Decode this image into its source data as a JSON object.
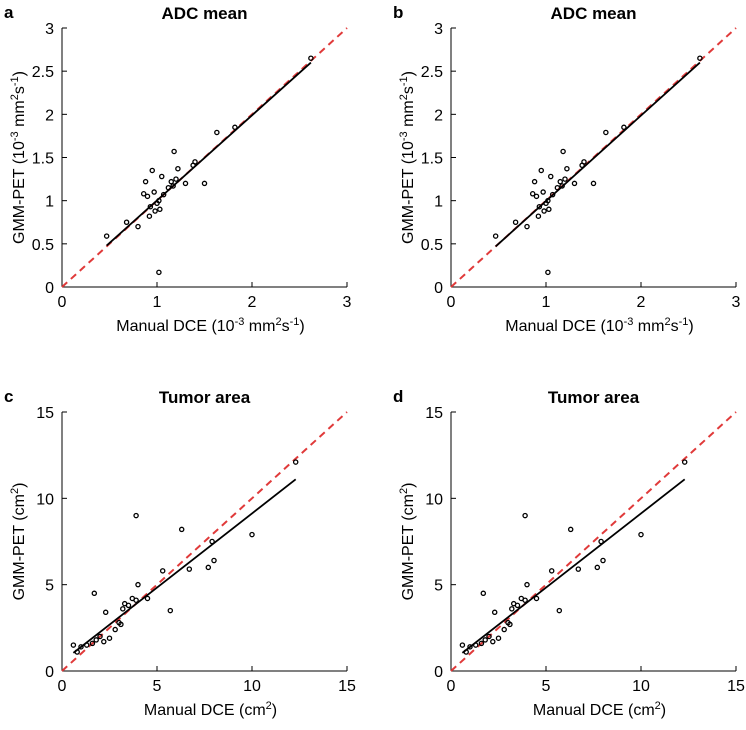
{
  "chart_data": [
    {
      "type": "scatter",
      "panel_label": "a",
      "title": "ADC mean",
      "xlabel_parts": [
        "Manual DCE (10",
        "-3",
        " mm",
        "2",
        "s",
        "-1",
        ")"
      ],
      "ylabel_parts": [
        "GMM-PET (10",
        "-3",
        " mm",
        "2",
        "s",
        "-1",
        ")"
      ],
      "xlim": [
        0,
        3
      ],
      "ylim": [
        0,
        3
      ],
      "xticks": [
        0,
        1,
        2,
        3
      ],
      "yticks": [
        0,
        0.5,
        1,
        1.5,
        2,
        2.5,
        3
      ],
      "ytick_labels": [
        "0",
        "0.5",
        "1",
        "1.5",
        "2",
        "2.5",
        "3"
      ],
      "identity_line_color": "#e03a3a",
      "fit_line_color": "#000000",
      "fit_line": {
        "x": [
          0.47,
          2.62
        ],
        "y": [
          0.48,
          2.6
        ]
      },
      "x": [
        0.47,
        0.68,
        0.8,
        0.86,
        0.88,
        0.9,
        0.92,
        0.93,
        0.95,
        0.97,
        0.98,
        1.0,
        1.02,
        1.03,
        1.05,
        1.07,
        1.12,
        1.15,
        1.17,
        1.18,
        1.2,
        1.22,
        1.3,
        1.38,
        1.4,
        1.5,
        1.63,
        1.82,
        2.62,
        1.02
      ],
      "y": [
        0.59,
        0.75,
        0.7,
        1.08,
        1.22,
        1.05,
        0.82,
        0.93,
        1.35,
        1.1,
        0.88,
        0.97,
        1.0,
        0.9,
        1.28,
        1.07,
        1.15,
        1.22,
        1.17,
        1.57,
        1.25,
        1.37,
        1.2,
        1.41,
        1.45,
        1.2,
        1.79,
        1.85,
        2.65,
        0.17
      ]
    },
    {
      "type": "scatter",
      "panel_label": "b",
      "title": "ADC mean",
      "xlabel_parts": [
        "Manual DCE (10",
        "-3",
        " mm",
        "2",
        "s",
        "-1",
        ")"
      ],
      "ylabel_parts": [
        "GMM-PET (10",
        "-3",
        " mm",
        "2",
        "s",
        "-1",
        ")"
      ],
      "xlim": [
        0,
        3
      ],
      "ylim": [
        0,
        3
      ],
      "xticks": [
        0,
        1,
        2,
        3
      ],
      "yticks": [
        0,
        0.5,
        1,
        1.5,
        2,
        2.5,
        3
      ],
      "ytick_labels": [
        "0",
        "0.5",
        "1",
        "1.5",
        "2",
        "2.5",
        "3"
      ],
      "identity_line_color": "#e03a3a",
      "fit_line_color": "#000000",
      "fit_line": {
        "x": [
          0.47,
          2.62
        ],
        "y": [
          0.47,
          2.6
        ]
      },
      "x": [
        0.47,
        0.68,
        0.8,
        0.86,
        0.88,
        0.9,
        0.92,
        0.93,
        0.95,
        0.97,
        0.98,
        1.0,
        1.02,
        1.03,
        1.05,
        1.07,
        1.12,
        1.15,
        1.17,
        1.18,
        1.2,
        1.22,
        1.3,
        1.38,
        1.4,
        1.5,
        1.63,
        1.82,
        2.62,
        1.02
      ],
      "y": [
        0.59,
        0.75,
        0.7,
        1.08,
        1.22,
        1.05,
        0.82,
        0.93,
        1.35,
        1.1,
        0.88,
        0.97,
        1.0,
        0.9,
        1.28,
        1.07,
        1.15,
        1.22,
        1.17,
        1.57,
        1.25,
        1.37,
        1.2,
        1.41,
        1.45,
        1.2,
        1.79,
        1.85,
        2.65,
        0.17
      ]
    },
    {
      "type": "scatter",
      "panel_label": "c",
      "title": "Tumor area",
      "xlabel_parts": [
        "Manual DCE (cm",
        "2",
        ")"
      ],
      "ylabel_parts": [
        "GMM-PET (cm",
        "2",
        ")"
      ],
      "xlim": [
        0,
        15
      ],
      "ylim": [
        0,
        15
      ],
      "xticks": [
        0,
        5,
        10,
        15
      ],
      "yticks": [
        0,
        5,
        10,
        15
      ],
      "ytick_labels": [
        "0",
        "5",
        "10",
        "15"
      ],
      "identity_line_color": "#e03a3a",
      "fit_line_color": "#000000",
      "fit_line": {
        "x": [
          0.6,
          12.3
        ],
        "y": [
          1.05,
          11.1
        ]
      },
      "x": [
        0.6,
        0.8,
        1.0,
        1.3,
        1.6,
        1.8,
        2.0,
        2.2,
        2.3,
        2.5,
        2.8,
        3.0,
        3.1,
        3.2,
        3.3,
        3.5,
        3.7,
        3.9,
        4.0,
        4.5,
        5.3,
        5.7,
        6.3,
        6.7,
        7.7,
        7.9,
        8.0,
        10.0,
        12.3,
        3.9,
        1.7
      ],
      "y": [
        1.5,
        1.1,
        1.4,
        1.5,
        1.6,
        1.8,
        2.0,
        1.7,
        3.4,
        1.9,
        2.4,
        2.8,
        2.7,
        3.6,
        3.9,
        3.8,
        4.2,
        4.1,
        5.0,
        4.2,
        5.8,
        3.5,
        8.2,
        5.9,
        6.0,
        7.5,
        6.4,
        7.9,
        12.1,
        9.0,
        4.5
      ]
    },
    {
      "type": "scatter",
      "panel_label": "d",
      "title": "Tumor area",
      "xlabel_parts": [
        "Manual DCE (cm",
        "2",
        ")"
      ],
      "ylabel_parts": [
        "GMM-PET (cm",
        "2",
        ")"
      ],
      "xlim": [
        0,
        15
      ],
      "ylim": [
        0,
        15
      ],
      "xticks": [
        0,
        5,
        10,
        15
      ],
      "yticks": [
        0,
        5,
        10,
        15
      ],
      "ytick_labels": [
        "0",
        "5",
        "10",
        "15"
      ],
      "identity_line_color": "#e03a3a",
      "fit_line_color": "#000000",
      "fit_line": {
        "x": [
          0.6,
          12.3
        ],
        "y": [
          1.05,
          11.1
        ]
      },
      "x": [
        0.6,
        0.8,
        1.0,
        1.3,
        1.6,
        1.8,
        2.0,
        2.2,
        2.3,
        2.5,
        2.8,
        3.0,
        3.1,
        3.2,
        3.3,
        3.5,
        3.7,
        3.9,
        4.0,
        4.5,
        5.3,
        5.7,
        6.3,
        6.7,
        7.7,
        7.9,
        8.0,
        10.0,
        12.3,
        3.9,
        1.7
      ],
      "y": [
        1.5,
        1.1,
        1.4,
        1.5,
        1.6,
        1.8,
        2.0,
        1.7,
        3.4,
        1.9,
        2.4,
        2.8,
        2.7,
        3.6,
        3.9,
        3.8,
        4.2,
        4.1,
        5.0,
        4.2,
        5.8,
        3.5,
        8.2,
        5.9,
        6.0,
        7.5,
        6.4,
        7.9,
        12.1,
        9.0,
        4.5
      ]
    }
  ]
}
